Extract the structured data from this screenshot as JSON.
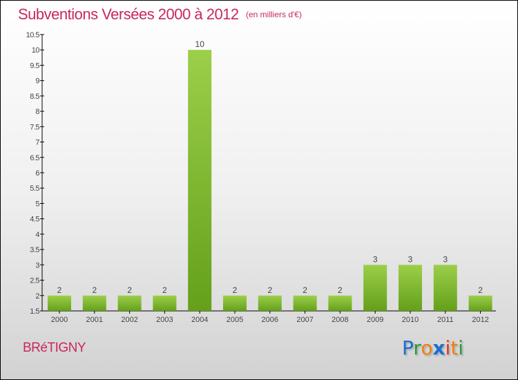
{
  "title": "Subventions Versées 2000 à 2012",
  "unit": "(en milliers d'€)",
  "city": "BRéTIGNY",
  "logo": {
    "letters": [
      "P",
      "r",
      "o",
      "x",
      "i",
      "t",
      "i"
    ],
    "colors": [
      "#1a6fd0",
      "#2a9a3a",
      "#f08010",
      "#1a6fd0",
      "#e83020",
      "#f08010",
      "#2a9a3a"
    ]
  },
  "colors": {
    "bar_top": "#9ccf4a",
    "bar_bottom": "#64a01a",
    "title": "#c8285a"
  },
  "chart_data": {
    "type": "bar",
    "title": "Subventions Versées 2000 à 2012",
    "categories": [
      "2000",
      "2001",
      "2002",
      "2003",
      "2004",
      "2005",
      "2006",
      "2007",
      "2008",
      "2009",
      "2010",
      "2011",
      "2012"
    ],
    "values": [
      2,
      2,
      2,
      2,
      10,
      2,
      2,
      2,
      2,
      3,
      3,
      3,
      2
    ],
    "ylim": [
      1.5,
      10.5
    ],
    "yticks": [
      "1.5",
      "2",
      "2.5",
      "3",
      "3.5",
      "4",
      "4.5",
      "5",
      "5.5",
      "6",
      "6.5",
      "7",
      "7.5",
      "8",
      "8.5",
      "9",
      "9.5",
      "10",
      "10.5"
    ],
    "xlabel": "",
    "ylabel": "",
    "grid": false
  }
}
